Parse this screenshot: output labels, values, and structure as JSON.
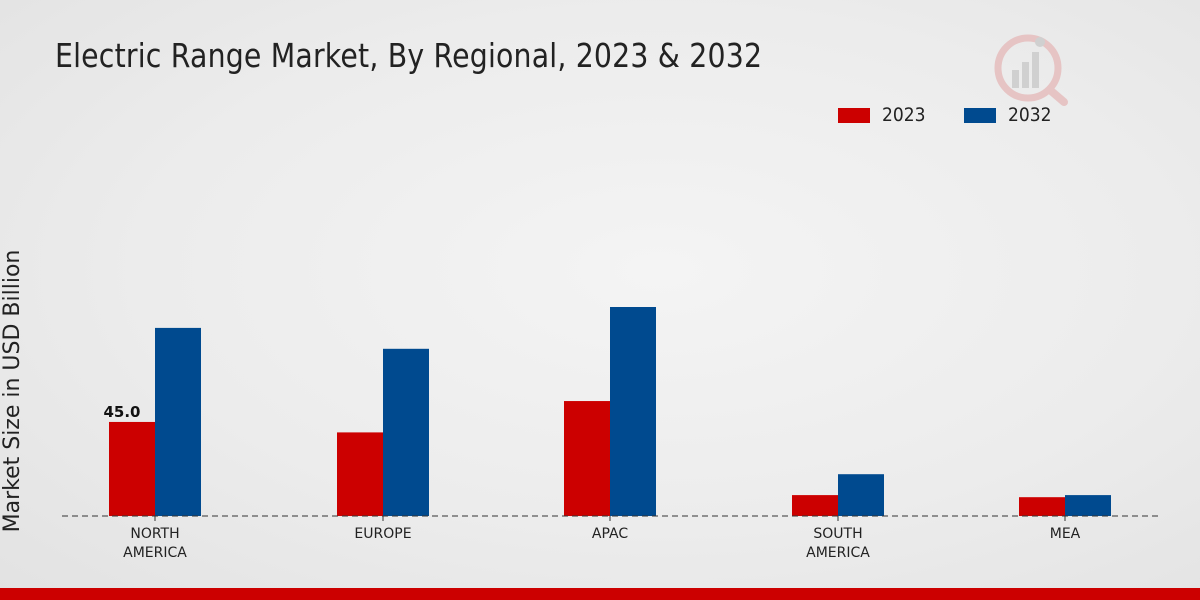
{
  "chart_data": {
    "type": "bar",
    "title": "Electric Range Market, By Regional, 2023 & 2032",
    "ylabel": "Market Size in USD Billion",
    "xlabel": "",
    "categories": [
      "NORTH\nAMERICA",
      "EUROPE",
      "APAC",
      "SOUTH\nAMERICA",
      "MEA"
    ],
    "series": [
      {
        "name": "2023",
        "color": "#cc0000",
        "values": [
          45.0,
          40.0,
          55.0,
          10.0,
          9.0
        ]
      },
      {
        "name": "2032",
        "color": "#004a8f",
        "values": [
          90.0,
          80.0,
          100.0,
          20.0,
          10.0
        ]
      }
    ],
    "data_labels": [
      {
        "series": 0,
        "index": 0,
        "text": "45.0"
      }
    ],
    "ylim": [
      0,
      150
    ],
    "legend_position": "top-right",
    "grid": false
  }
}
